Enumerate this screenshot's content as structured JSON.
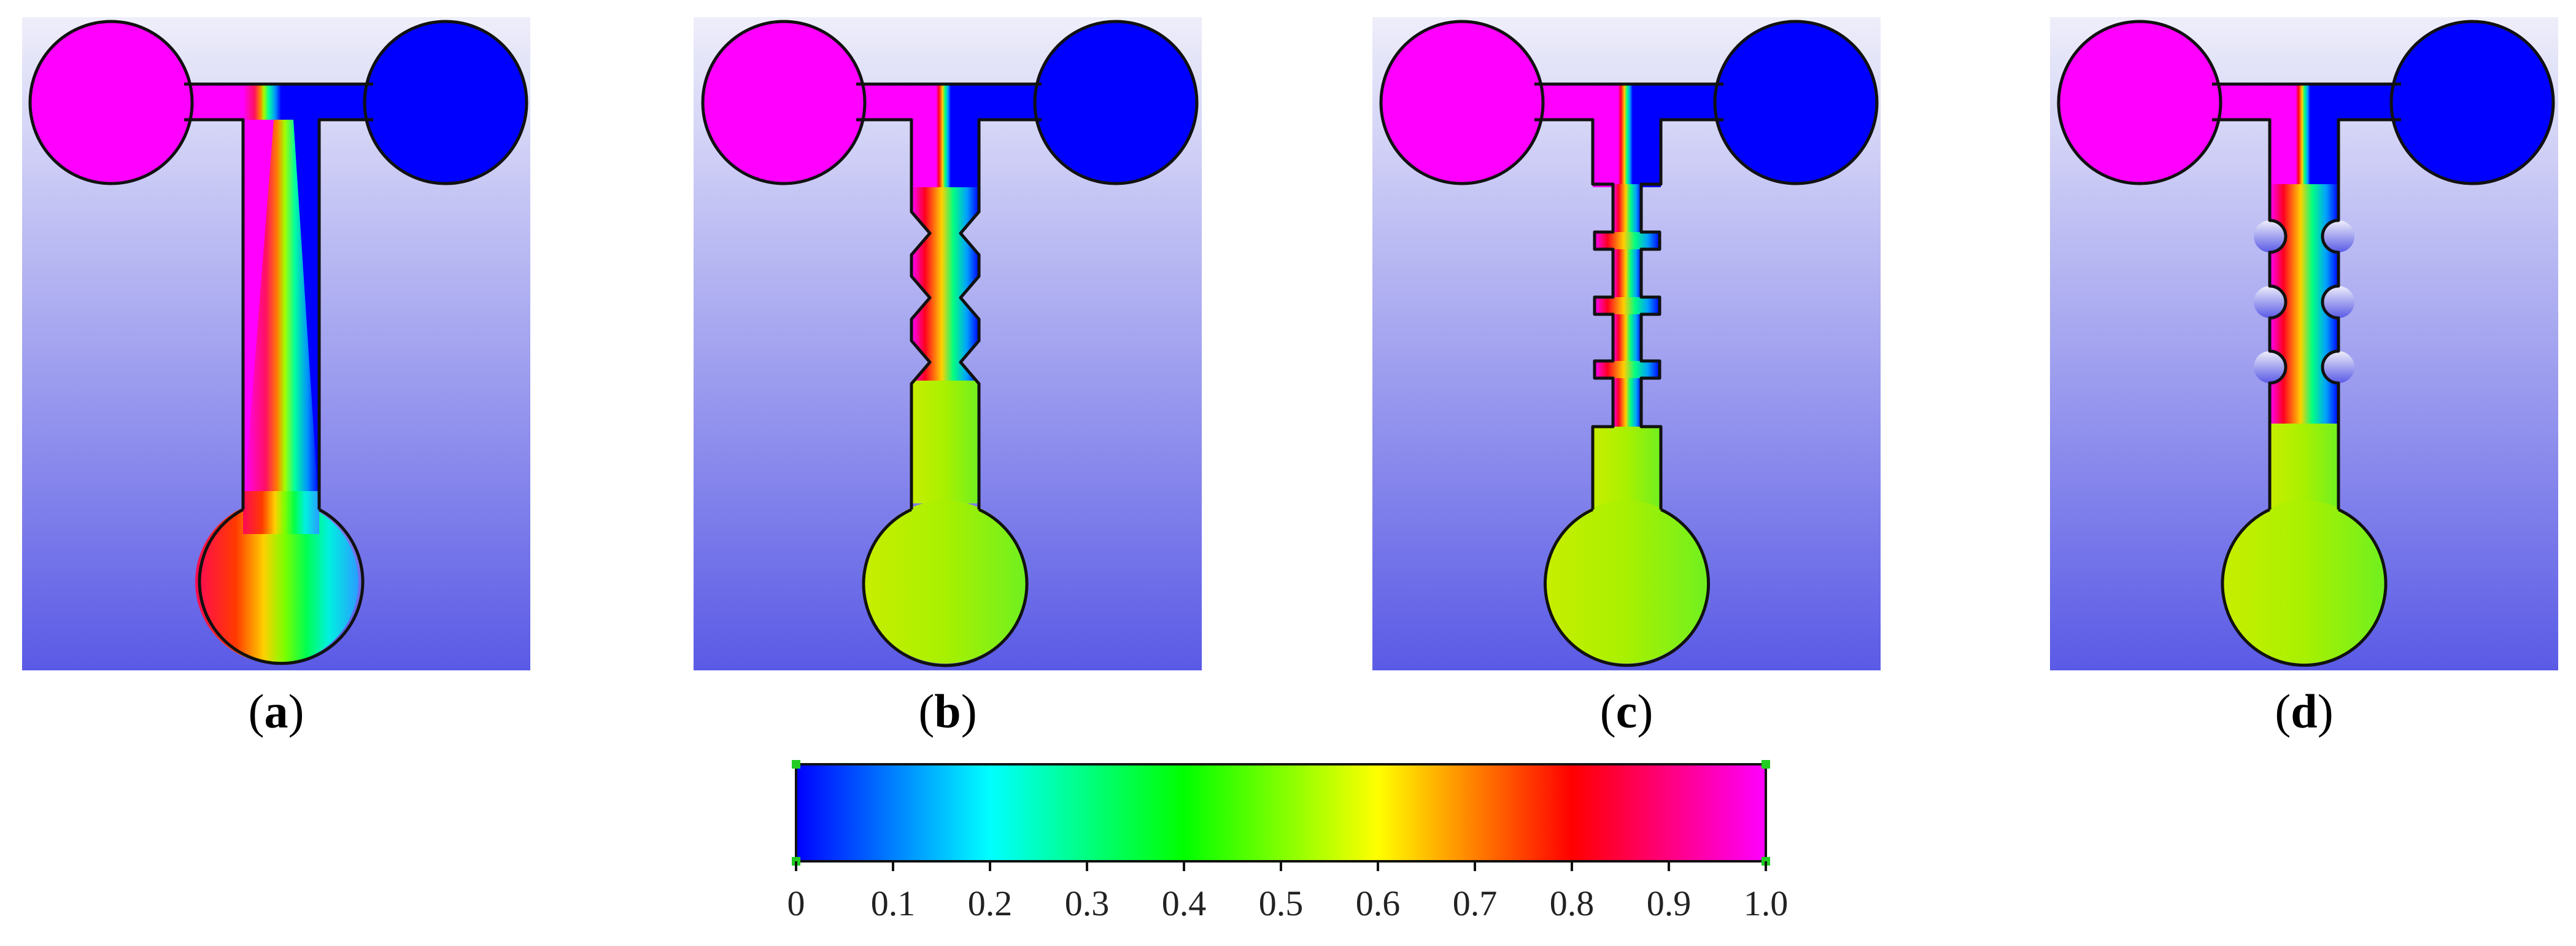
{
  "panels": [
    {
      "id": "a",
      "caption_letter": "a",
      "channel": "straight"
    },
    {
      "id": "b",
      "caption_letter": "b",
      "channel": "triangular-baffles"
    },
    {
      "id": "c",
      "caption_letter": "c",
      "channel": "rectangular-baffles"
    },
    {
      "id": "d",
      "caption_letter": "d",
      "channel": "circular-baffles"
    }
  ],
  "colorbar": {
    "ticks": [
      "0",
      "0.1",
      "0.2",
      "0.3",
      "0.4",
      "0.5",
      "0.6",
      "0.7",
      "0.8",
      "0.9",
      "1.0"
    ],
    "min": 0,
    "max": 1.0,
    "stops": [
      {
        "value": 0.0,
        "color": "#0000ff"
      },
      {
        "value": 0.2,
        "color": "#00ffff"
      },
      {
        "value": 0.4,
        "color": "#00ff00"
      },
      {
        "value": 0.6,
        "color": "#ffff00"
      },
      {
        "value": 0.8,
        "color": "#ff0000"
      },
      {
        "value": 1.0,
        "color": "#ff00ff"
      }
    ]
  },
  "colors": {
    "inlet_left": "#ff00ff",
    "inlet_right": "#0000ff",
    "mixed_outlet": "#8ce600",
    "background_top": "#eeeefa",
    "background_bottom": "#5a5ae6"
  }
}
